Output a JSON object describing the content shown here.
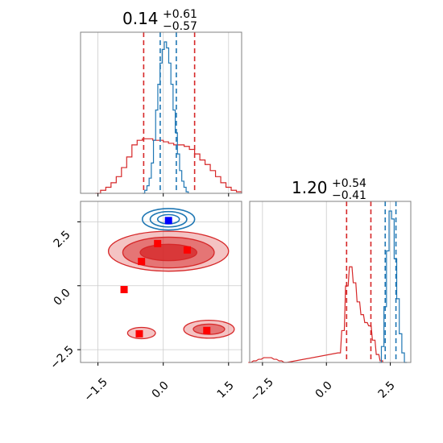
{
  "chart_data": {
    "type": "corner",
    "colors": {
      "red": "#d62728",
      "blue": "#1f77b4",
      "grid": "#cccccc",
      "frame": "#808080"
    },
    "params": [
      {
        "median": "0.14",
        "plus": "+0.61",
        "minus": "−0.57"
      },
      {
        "median": "1.20",
        "plus": "+0.54",
        "minus": "−0.41"
      }
    ],
    "x_ticks": [
      "−1.5",
      "0.0",
      "1.5"
    ],
    "y_ticks": [
      "2.5",
      "0.0",
      "−2.5"
    ],
    "marg_ticks": [
      "−2.5",
      "0.0",
      "2.5"
    ],
    "ranges": {
      "p1": [
        -1.9,
        1.8
      ],
      "p2": [
        -3.0,
        3.3
      ]
    },
    "grid": true,
    "panels": [
      {
        "name": "marginal-param-1",
        "series": [
          {
            "name": "red",
            "color": "#d62728",
            "quantiles": [
              -0.45,
              0.72
            ],
            "hist": [
              [
                -1.5,
                0.0
              ],
              [
                -1.38,
                0.02
              ],
              [
                -1.26,
                0.04
              ],
              [
                -1.14,
                0.07
              ],
              [
                -1.02,
                0.11
              ],
              [
                -0.9,
                0.17
              ],
              [
                -0.78,
                0.24
              ],
              [
                -0.66,
                0.32
              ],
              [
                -0.54,
                0.35
              ],
              [
                -0.42,
                0.36
              ],
              [
                -0.3,
                0.36
              ],
              [
                -0.18,
                0.35
              ],
              [
                -0.06,
                0.35
              ],
              [
                0.06,
                0.34
              ],
              [
                0.18,
                0.33
              ],
              [
                0.3,
                0.32
              ],
              [
                0.42,
                0.32
              ],
              [
                0.54,
                0.31
              ],
              [
                0.66,
                0.29
              ],
              [
                0.78,
                0.26
              ],
              [
                0.9,
                0.22
              ],
              [
                1.02,
                0.19
              ],
              [
                1.14,
                0.15
              ],
              [
                1.26,
                0.11
              ],
              [
                1.38,
                0.07
              ],
              [
                1.5,
                0.04
              ],
              [
                1.62,
                0.02
              ],
              [
                1.74,
                0.01
              ]
            ]
          },
          {
            "name": "blue",
            "color": "#1f77b4",
            "quantiles": [
              -0.07,
              0.3
            ],
            "hist": [
              [
                -0.45,
                0.0
              ],
              [
                -0.4,
                0.02
              ],
              [
                -0.35,
                0.05
              ],
              [
                -0.3,
                0.1
              ],
              [
                -0.25,
                0.2
              ],
              [
                -0.2,
                0.35
              ],
              [
                -0.15,
                0.55
              ],
              [
                -0.1,
                0.72
              ],
              [
                -0.05,
                0.86
              ],
              [
                0.0,
                0.95
              ],
              [
                0.05,
                1.0
              ],
              [
                0.1,
                0.96
              ],
              [
                0.15,
                0.86
              ],
              [
                0.2,
                0.72
              ],
              [
                0.25,
                0.55
              ],
              [
                0.3,
                0.4
              ],
              [
                0.35,
                0.26
              ],
              [
                0.4,
                0.15
              ],
              [
                0.45,
                0.08
              ],
              [
                0.5,
                0.04
              ],
              [
                0.55,
                0.01
              ]
            ]
          }
        ]
      },
      {
        "name": "marginal-param-2",
        "series": [
          {
            "name": "red",
            "color": "#d62728",
            "quantiles": [
              0.79,
              1.74
            ],
            "hist": [
              [
                -3.0,
                0.0
              ],
              [
                -2.8,
                0.01
              ],
              [
                -2.6,
                0.02
              ],
              [
                -2.4,
                0.03
              ],
              [
                -2.2,
                0.03
              ],
              [
                -2.0,
                0.02
              ],
              [
                -1.8,
                0.01
              ],
              [
                -1.6,
                0.0
              ],
              [
                0.5,
                0.06
              ],
              [
                0.65,
                0.2
              ],
              [
                0.8,
                0.48
              ],
              [
                0.95,
                0.6
              ],
              [
                1.1,
                0.5
              ],
              [
                1.25,
                0.38
              ],
              [
                1.4,
                0.3
              ],
              [
                1.55,
                0.25
              ],
              [
                1.7,
                0.23
              ],
              [
                1.85,
                0.14
              ],
              [
                2.0,
                0.05
              ],
              [
                2.15,
                0.01
              ]
            ]
          },
          {
            "name": "blue",
            "color": "#1f77b4",
            "quantiles": [
              2.3,
              2.72
            ],
            "hist": [
              [
                2.1,
                0.0
              ],
              [
                2.2,
                0.1
              ],
              [
                2.3,
                0.35
              ],
              [
                2.4,
                0.7
              ],
              [
                2.5,
                0.95
              ],
              [
                2.6,
                0.9
              ],
              [
                2.7,
                0.65
              ],
              [
                2.8,
                0.4
              ],
              [
                2.9,
                0.18
              ],
              [
                3.0,
                0.06
              ],
              [
                3.1,
                0.0
              ]
            ]
          }
        ]
      },
      {
        "name": "joint-param-1-vs-param-2",
        "red_points": [
          [
            -0.13,
            1.65
          ],
          [
            -0.5,
            0.95
          ],
          [
            0.55,
            1.4
          ],
          [
            -0.9,
            -0.15
          ],
          [
            -0.55,
            -1.88
          ],
          [
            1.0,
            -1.75
          ]
        ],
        "blue_points": [
          [
            0.12,
            2.55
          ]
        ],
        "red_regions": [
          {
            "level": "outer",
            "cx": 0.12,
            "cy": 1.35,
            "rx": 1.38,
            "ry": 0.78
          },
          {
            "level": "mid",
            "cx": 0.12,
            "cy": 1.3,
            "rx": 1.05,
            "ry": 0.6
          },
          {
            "level": "inner",
            "cx": 0.12,
            "cy": 1.3,
            "rx": 0.65,
            "ry": 0.32
          },
          {
            "level": "outer",
            "cx": -0.5,
            "cy": -1.85,
            "rx": 0.32,
            "ry": 0.22
          },
          {
            "level": "outer",
            "cx": 1.05,
            "cy": -1.7,
            "rx": 0.58,
            "ry": 0.35
          },
          {
            "level": "mid",
            "cx": 1.05,
            "cy": -1.7,
            "rx": 0.36,
            "ry": 0.2
          }
        ],
        "blue_contours": [
          {
            "cx": 0.12,
            "cy": 2.6,
            "rx": 0.6,
            "ry": 0.42
          },
          {
            "cx": 0.12,
            "cy": 2.6,
            "rx": 0.42,
            "ry": 0.3
          },
          {
            "cx": 0.12,
            "cy": 2.6,
            "rx": 0.25,
            "ry": 0.18
          }
        ]
      }
    ]
  }
}
